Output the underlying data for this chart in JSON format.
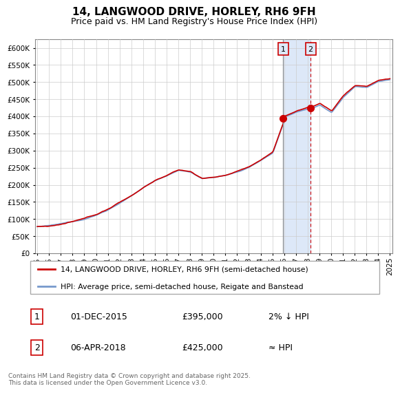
{
  "title": "14, LANGWOOD DRIVE, HORLEY, RH6 9FH",
  "subtitle": "Price paid vs. HM Land Registry's House Price Index (HPI)",
  "ylim": [
    0,
    625000
  ],
  "yticks": [
    0,
    50000,
    100000,
    150000,
    200000,
    250000,
    300000,
    350000,
    400000,
    450000,
    500000,
    550000,
    600000
  ],
  "year_start": 1995,
  "year_end": 2025,
  "sale1_date": "01-DEC-2015",
  "sale1_price": 395000,
  "sale1_label": "1",
  "sale1_note": "2% ↓ HPI",
  "sale1_year": 2015.92,
  "sale2_date": "06-APR-2018",
  "sale2_price": 425000,
  "sale2_label": "2",
  "sale2_note": "≈ HPI",
  "sale2_year": 2018.25,
  "legend_property": "14, LANGWOOD DRIVE, HORLEY, RH6 9FH (semi-detached house)",
  "legend_hpi": "HPI: Average price, semi-detached house, Reigate and Banstead",
  "property_color": "#cc0000",
  "hpi_color": "#7799cc",
  "vline1_color": "#888888",
  "vline2_color": "#cc0000",
  "shade_color": "#dde8f8",
  "marker_box_color": "#cc0000",
  "background_color": "#ffffff",
  "grid_color": "#cccccc",
  "footnote": "Contains HM Land Registry data © Crown copyright and database right 2025.\nThis data is licensed under the Open Government Licence v3.0.",
  "key_years": [
    1995,
    1996,
    1997,
    1998,
    1999,
    2000,
    2001,
    2002,
    2003,
    2004,
    2005,
    2006,
    2007,
    2008,
    2009,
    2010,
    2011,
    2012,
    2013,
    2014,
    2015,
    2015.92,
    2016,
    2017,
    2018,
    2018.25,
    2019,
    2020,
    2021,
    2022,
    2023,
    2024,
    2025
  ],
  "key_values": [
    78000,
    80000,
    85000,
    92000,
    100000,
    112000,
    128000,
    148000,
    168000,
    192000,
    213000,
    228000,
    243000,
    238000,
    218000,
    222000,
    228000,
    238000,
    252000,
    272000,
    295000,
    383000,
    400000,
    415000,
    425000,
    425000,
    438000,
    415000,
    460000,
    490000,
    488000,
    505000,
    510000
  ]
}
